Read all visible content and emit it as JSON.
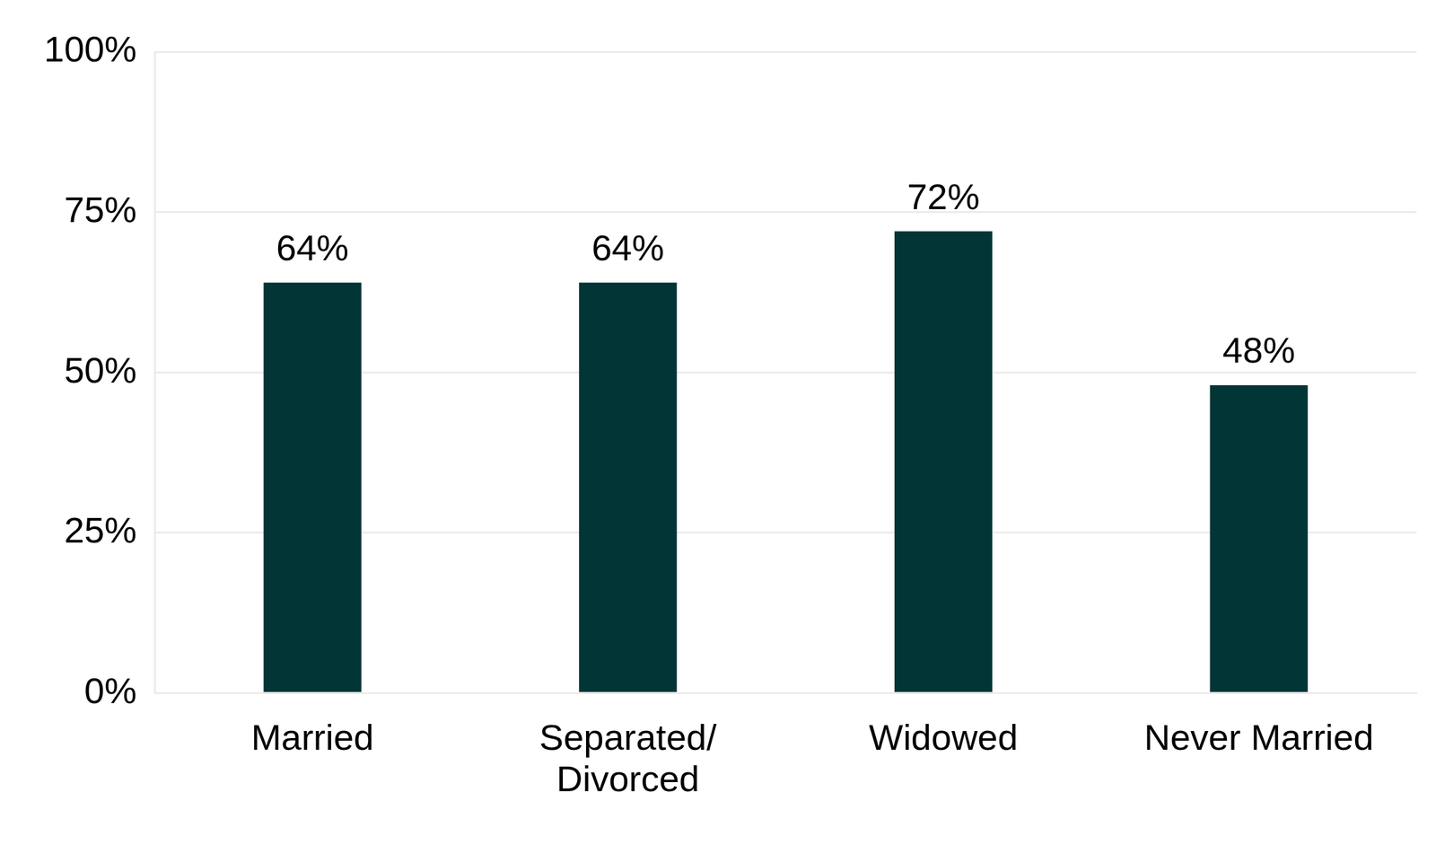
{
  "chart_data": {
    "type": "bar",
    "categories": [
      "Married",
      "Separated/Divorced",
      "Widowed",
      "Never Married"
    ],
    "values": [
      64,
      64,
      72,
      48
    ],
    "value_labels": [
      "64%",
      "64%",
      "72%",
      "48%"
    ],
    "data_labels": true,
    "color": "#023535",
    "ylim": [
      0,
      100
    ],
    "yticks": [
      {
        "value": 0,
        "label": "0%"
      },
      {
        "value": 25,
        "label": "25%"
      },
      {
        "value": 50,
        "label": "50%"
      },
      {
        "value": 75,
        "label": "75%"
      },
      {
        "value": 100,
        "label": "100%"
      }
    ],
    "grid": true
  }
}
